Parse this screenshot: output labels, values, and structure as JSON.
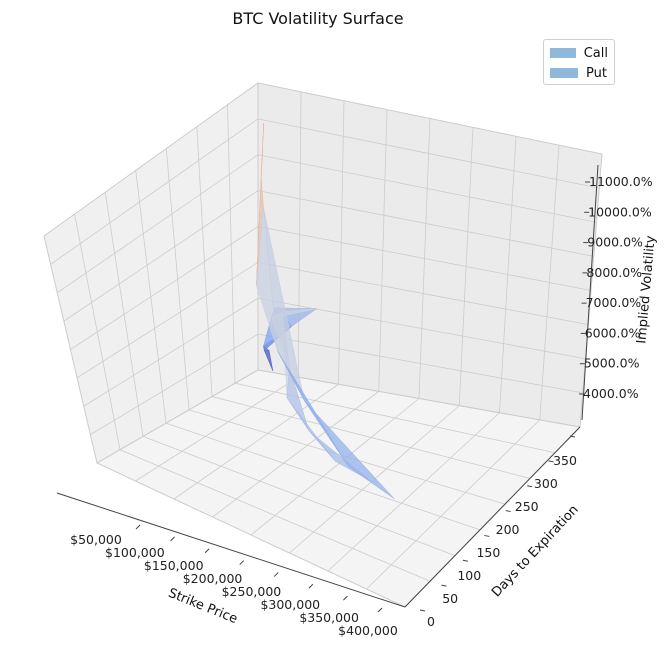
{
  "chart_data": {
    "type": "surface3d",
    "title": "BTC Volatility Surface",
    "xlabel": "Strike Price",
    "ylabel": "Days to Expiration",
    "zlabel": "Implied Volatility",
    "x_ticks": [
      "$50,000",
      "$100,000",
      "$150,000",
      "$200,000",
      "$250,000",
      "$300,000",
      "$350,000",
      "$400,000"
    ],
    "y_ticks": [
      "0",
      "50",
      "100",
      "150",
      "200",
      "250",
      "300",
      "350"
    ],
    "z_ticks": [
      "4000.0%",
      "5000.0%",
      "6000.0%",
      "7000.0%",
      "8000.0%",
      "9000.0%",
      "10000.0%",
      "11000.0%"
    ],
    "xlim": [
      20000,
      410000
    ],
    "ylim": [
      0,
      370
    ],
    "zlim": [
      3000,
      11500
    ],
    "grid": true,
    "legend_position": "top-right",
    "colormap": "coolwarm",
    "series": [
      {
        "name": "Call",
        "color": "#8fb9da",
        "points": [
          {
            "strike": 40000,
            "days": 2,
            "iv": 3200
          },
          {
            "strike": 45000,
            "days": 20,
            "iv": 4000
          },
          {
            "strike": 50000,
            "days": 40,
            "iv": 4200
          },
          {
            "strike": 60000,
            "days": 60,
            "iv": 4600
          },
          {
            "strike": 80000,
            "days": 30,
            "iv": 5200
          },
          {
            "strike": 90000,
            "days": 90,
            "iv": 6300
          },
          {
            "strike": 100000,
            "days": 10,
            "iv": 5800
          },
          {
            "strike": 120000,
            "days": 150,
            "iv": 6800
          },
          {
            "strike": 150000,
            "days": 180,
            "iv": 7600
          },
          {
            "strike": 170000,
            "days": 200,
            "iv": 6300
          },
          {
            "strike": 200000,
            "days": 260,
            "iv": 6200
          },
          {
            "strike": 250000,
            "days": 300,
            "iv": 6100
          },
          {
            "strike": 300000,
            "days": 330,
            "iv": 6000
          },
          {
            "strike": 350000,
            "days": 340,
            "iv": 6100
          }
        ]
      },
      {
        "name": "Put",
        "color": "#8fb9da",
        "points": [
          {
            "strike": 30000,
            "days": 5,
            "iv": 10400
          },
          {
            "strike": 35000,
            "days": 20,
            "iv": 9000
          },
          {
            "strike": 40000,
            "days": 40,
            "iv": 6000
          },
          {
            "strike": 60000,
            "days": 60,
            "iv": 8700
          },
          {
            "strike": 100000,
            "days": 100,
            "iv": 5200
          },
          {
            "strike": 200000,
            "days": 220,
            "iv": 5800
          },
          {
            "strike": 300000,
            "days": 300,
            "iv": 5600
          },
          {
            "strike": 380000,
            "days": 340,
            "iv": 5900
          }
        ]
      }
    ]
  }
}
